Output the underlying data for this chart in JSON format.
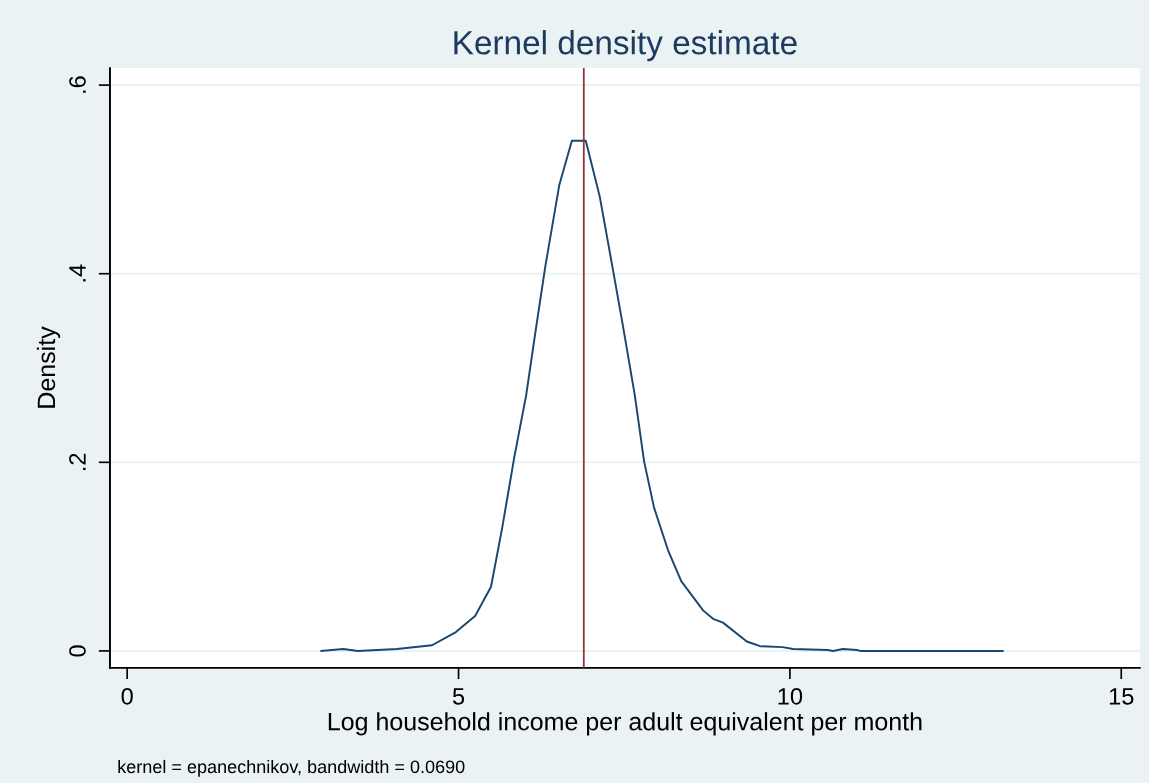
{
  "chart_data": {
    "type": "line",
    "title": "Kernel density estimate",
    "xlabel": "Log household income per adult equivalent per month",
    "ylabel": "Density",
    "x": [
      2.93,
      3.26,
      3.48,
      4.07,
      4.6,
      4.96,
      5.25,
      5.49,
      5.66,
      5.84,
      6.02,
      6.16,
      6.31,
      6.52,
      6.71,
      6.92,
      7.13,
      7.3,
      7.48,
      7.66,
      7.8,
      7.95,
      8.16,
      8.36,
      8.69,
      8.84,
      8.99,
      9.35,
      9.55,
      9.89,
      10.05,
      10.57,
      10.65,
      10.8,
      11.01,
      11.06,
      13.21
    ],
    "series": [
      {
        "color": "#1a476f",
        "values": [
          0,
          0.002,
          0,
          0.002,
          0.006,
          0.02,
          0.037,
          0.068,
          0.131,
          0.205,
          0.271,
          0.338,
          0.408,
          0.494,
          0.541,
          0.541,
          0.482,
          0.416,
          0.345,
          0.271,
          0.201,
          0.152,
          0.107,
          0.074,
          0.043,
          0.034,
          0.03,
          0.01,
          0.005,
          0.004,
          0.002,
          0.001,
          0,
          0.002,
          0.001,
          0,
          0
        ]
      }
    ],
    "xlim": [
      -0.26,
      15.28
    ],
    "xticks": [
      0,
      5,
      10,
      15
    ],
    "ylim": [
      -0.018,
      0.618
    ],
    "yticks": [
      0,
      {
        "value": 0.2,
        "label": ".2"
      },
      {
        "value": 0.4,
        "label": ".4"
      },
      {
        "value": 0.6,
        "label": ".6"
      }
    ],
    "grid": "y",
    "line_style": "solid",
    "marker": "none",
    "ref_lines": [
      {
        "axis": "x",
        "value": 6.89,
        "color": "#90353b"
      }
    ],
    "annotations": [
      "kernel = epanechnikov, bandwidth = 0.0690"
    ]
  }
}
